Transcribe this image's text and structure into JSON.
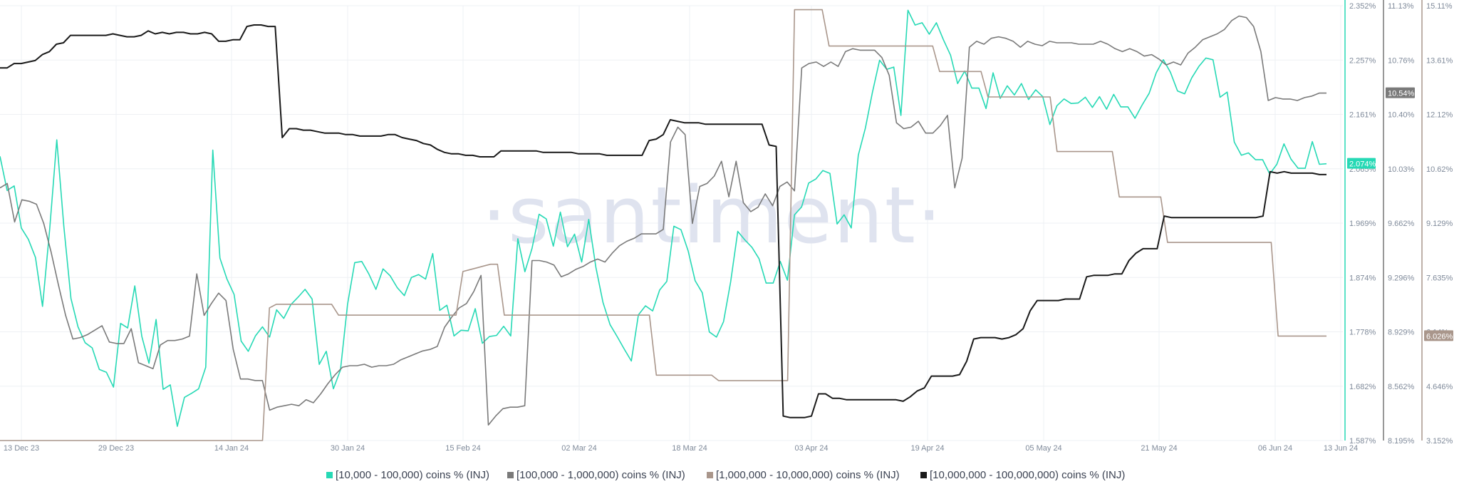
{
  "watermark": "·santiment·",
  "chart_data": {
    "type": "line",
    "x_labels": [
      "13 Dec 23",
      "29 Dec 23",
      "14 Jan 24",
      "30 Jan 24",
      "15 Feb 24",
      "02 Mar 24",
      "18 Mar 24",
      "03 Apr 24",
      "19 Apr 24",
      "05 May 24",
      "21 May 24",
      "06 Jun 24",
      "13 Jun 24"
    ],
    "axes": [
      {
        "id": "a1",
        "color": "#26d9b5",
        "ticks": [
          "2.352%",
          "2.257%",
          "2.161%",
          "2.065%",
          "1.969%",
          "1.874%",
          "1.778%",
          "1.682%",
          "1.587%"
        ],
        "min": 1.587,
        "max": 2.352
      },
      {
        "id": "a2",
        "color": "#777777",
        "ticks": [
          "11.13%",
          "10.76%",
          "10.40%",
          "10.03%",
          "9.662%",
          "9.296%",
          "8.929%",
          "8.562%",
          "8.195%"
        ],
        "min": 8.195,
        "max": 11.13
      },
      {
        "id": "a3",
        "color": "#a9968b",
        "ticks": [
          "15.11%",
          "13.61%",
          "12.12%",
          "10.62%",
          "9.129%",
          "7.635%",
          "6.14%",
          "4.646%",
          "3.152%"
        ],
        "min": 3.152,
        "max": 15.11
      }
    ],
    "series": [
      {
        "name": "[10,000 - 100,000) coins % (INJ)",
        "color": "#26d9b5",
        "axis": "a1",
        "badge": "2.074%",
        "values": [
          2.087,
          2.027,
          2.035,
          1.961,
          1.941,
          1.909,
          1.823,
          1.958,
          2.116,
          1.964,
          1.837,
          1.787,
          1.759,
          1.75,
          1.712,
          1.707,
          1.681,
          1.793,
          1.785,
          1.859,
          1.77,
          1.723,
          1.8,
          1.677,
          1.685,
          1.612,
          1.663,
          1.67,
          1.678,
          1.716,
          2.098,
          1.908,
          1.871,
          1.844,
          1.762,
          1.744,
          1.771,
          1.787,
          1.769,
          1.817,
          1.802,
          1.826,
          1.839,
          1.853,
          1.836,
          1.721,
          1.744,
          1.678,
          1.711,
          1.827,
          1.9,
          1.902,
          1.88,
          1.853,
          1.889,
          1.877,
          1.856,
          1.842,
          1.874,
          1.879,
          1.871,
          1.916,
          1.816,
          1.825,
          1.771,
          1.781,
          1.78,
          1.819,
          1.758,
          1.77,
          1.772,
          1.788,
          1.771,
          1.942,
          1.884,
          1.925,
          1.985,
          1.977,
          1.929,
          1.989,
          1.928,
          1.95,
          1.901,
          1.976,
          1.892,
          1.83,
          1.791,
          1.77,
          1.748,
          1.727,
          1.808,
          1.824,
          1.815,
          1.852,
          1.867,
          1.964,
          1.958,
          1.921,
          1.868,
          1.847,
          1.778,
          1.769,
          1.796,
          1.866,
          1.955,
          1.94,
          1.927,
          1.907,
          1.864,
          1.864,
          1.902,
          1.869,
          1.984,
          1.998,
          2.04,
          2.047,
          2.062,
          2.057,
          1.968,
          1.984,
          1.961,
          2.089,
          2.137,
          2.2,
          2.256,
          2.24,
          2.244,
          2.159,
          2.344,
          2.318,
          2.322,
          2.302,
          2.322,
          2.292,
          2.265,
          2.215,
          2.237,
          2.207,
          2.207,
          2.171,
          2.234,
          2.189,
          2.211,
          2.195,
          2.215,
          2.187,
          2.204,
          2.192,
          2.143,
          2.176,
          2.188,
          2.18,
          2.181,
          2.191,
          2.173,
          2.192,
          2.17,
          2.196,
          2.174,
          2.174,
          2.154,
          2.177,
          2.198,
          2.234,
          2.257,
          2.235,
          2.202,
          2.197,
          2.225,
          2.245,
          2.26,
          2.257,
          2.191,
          2.2,
          2.112,
          2.089,
          2.093,
          2.081,
          2.081,
          2.056,
          2.073,
          2.109,
          2.082,
          2.066,
          2.066,
          2.113,
          2.073,
          2.074
        ],
        "markers": {
          "gap": 0.5
        }
      },
      {
        "name": "[100,000  - 1,000,000) coins % (INJ)",
        "color": "#7a7a7a",
        "axis": "a2",
        "values": [
          9.9,
          9.93,
          9.67,
          9.82,
          9.81,
          9.79,
          9.66,
          9.47,
          9.25,
          9.04,
          8.88,
          8.89,
          8.91,
          8.94,
          8.97,
          8.86,
          8.85,
          8.85,
          8.95,
          8.72,
          8.7,
          8.68,
          8.84,
          8.87,
          8.87,
          8.88,
          8.9,
          9.32,
          9.04,
          9.12,
          9.19,
          9.14,
          8.81,
          8.61,
          8.61,
          8.6,
          8.6,
          8.4,
          8.42,
          8.43,
          8.44,
          8.43,
          8.47,
          8.45,
          8.51,
          8.58,
          8.64,
          8.69,
          8.7,
          8.7,
          8.71,
          8.69,
          8.7,
          8.7,
          8.71,
          8.74,
          8.76,
          8.78,
          8.8,
          8.81,
          8.83,
          8.96,
          9.03,
          9.09,
          9.12,
          9.2,
          9.31,
          8.3,
          8.36,
          8.41,
          8.42,
          8.42,
          8.43,
          9.41,
          9.41,
          9.4,
          9.38,
          9.3,
          9.32,
          9.35,
          9.37,
          9.4,
          9.42,
          9.4,
          9.46,
          9.51,
          9.54,
          9.56,
          9.59,
          9.59,
          9.59,
          9.62,
          10.21,
          10.31,
          10.26,
          9.66,
          9.91,
          9.93,
          9.98,
          10.08,
          9.84,
          10.08,
          9.8,
          9.74,
          9.77,
          9.86,
          9.78,
          9.91,
          9.94,
          9.88,
          10.71,
          10.74,
          10.75,
          10.72,
          10.75,
          10.72,
          10.82,
          10.84,
          10.83,
          10.83,
          10.83,
          10.78,
          10.66,
          10.34,
          10.3,
          10.31,
          10.35,
          10.27,
          10.27,
          10.32,
          10.39,
          9.9,
          10.1,
          10.85,
          10.89,
          10.87,
          10.91,
          10.92,
          10.91,
          10.89,
          10.85,
          10.89,
          10.87,
          10.86,
          10.89,
          10.88,
          10.88,
          10.88,
          10.87,
          10.87,
          10.87,
          10.89,
          10.87,
          10.84,
          10.82,
          10.84,
          10.82,
          10.79,
          10.8,
          10.77,
          10.73,
          10.75,
          10.73,
          10.81,
          10.85,
          10.9,
          10.92,
          10.94,
          10.97,
          11.03,
          11.06,
          11.05,
          10.99,
          10.82,
          10.49,
          10.51,
          10.5,
          10.5,
          10.49,
          10.51,
          10.52,
          10.54,
          10.54
        ],
        "badge": "10.54%"
      },
      {
        "name": "[1,000,000 - 10,000,000) coins % (INJ)",
        "color": "#a9968b",
        "axis": "a3",
        "badge": "6.026%",
        "values": [
          3.152,
          3.152,
          3.152,
          3.152,
          3.152,
          3.152,
          3.152,
          3.152,
          3.152,
          3.152,
          3.152,
          3.152,
          3.152,
          3.152,
          3.152,
          3.152,
          3.152,
          3.152,
          3.152,
          3.152,
          3.152,
          3.152,
          3.152,
          3.152,
          3.152,
          3.152,
          3.152,
          3.152,
          3.152,
          3.152,
          3.152,
          3.152,
          3.152,
          3.152,
          3.152,
          3.152,
          3.152,
          3.152,
          3.152,
          6.8,
          6.9,
          6.9,
          6.9,
          6.9,
          6.9,
          6.9,
          6.9,
          6.9,
          6.9,
          6.6,
          6.6,
          6.6,
          6.6,
          6.6,
          6.6,
          6.6,
          6.6,
          6.6,
          6.6,
          6.6,
          6.6,
          6.6,
          6.6,
          6.6,
          6.6,
          6.6,
          6.6,
          7.8,
          7.85,
          7.9,
          7.95,
          8.0,
          8.0,
          6.6,
          6.6,
          6.6,
          6.6,
          6.6,
          6.6,
          6.6,
          6.6,
          6.6,
          6.6,
          6.6,
          6.6,
          6.6,
          6.6,
          6.6,
          6.6,
          6.6,
          6.6,
          6.6,
          6.6,
          6.6,
          6.6,
          4.95,
          4.95,
          4.95,
          4.95,
          4.95,
          4.95,
          4.95,
          4.95,
          4.95,
          4.8,
          4.8,
          4.8,
          4.8,
          4.8,
          4.8,
          4.8,
          4.8,
          4.8,
          4.8,
          4.8,
          15.0,
          15.0,
          15.0,
          15.0,
          15.0,
          14.0,
          14.0,
          14.0,
          14.0,
          14.0,
          14.0,
          14.0,
          14.0,
          14.0,
          14.0,
          14.0,
          14.0,
          14.0,
          14.0,
          14.0,
          14.0,
          13.3,
          13.3,
          13.3,
          13.3,
          13.3,
          13.3,
          13.3,
          12.6,
          12.6,
          12.6,
          12.6,
          12.6,
          12.6,
          12.6,
          12.6,
          12.6,
          12.6,
          11.1,
          11.1,
          11.1,
          11.1,
          11.1,
          11.1,
          11.1,
          11.1,
          11.1,
          9.85,
          9.85,
          9.85,
          9.85,
          9.85,
          9.85,
          9.85,
          8.6,
          8.6,
          8.6,
          8.6,
          8.6,
          8.6,
          8.6,
          8.6,
          8.6,
          8.6,
          8.6,
          8.6,
          8.6,
          8.6,
          8.6,
          8.6,
          6.026,
          6.026,
          6.026,
          6.026,
          6.026,
          6.026,
          6.026,
          6.026
        ]
      },
      {
        "name": "[10,000,000 - 100,000,000) coins % (INJ)",
        "color": "#1a1a1a",
        "axis": "a2",
        "values": [
          10.71,
          10.71,
          10.74,
          10.74,
          10.75,
          10.76,
          10.8,
          10.82,
          10.87,
          10.88,
          10.93,
          10.93,
          10.93,
          10.93,
          10.93,
          10.93,
          10.94,
          10.93,
          10.92,
          10.92,
          10.93,
          10.96,
          10.94,
          10.95,
          10.94,
          10.95,
          10.95,
          10.94,
          10.94,
          10.95,
          10.94,
          10.89,
          10.89,
          10.9,
          10.9,
          10.99,
          11.0,
          11.0,
          10.99,
          10.99,
          10.24,
          10.3,
          10.3,
          10.29,
          10.29,
          10.28,
          10.27,
          10.27,
          10.27,
          10.26,
          10.26,
          10.25,
          10.25,
          10.25,
          10.25,
          10.26,
          10.26,
          10.24,
          10.23,
          10.22,
          10.2,
          10.19,
          10.16,
          10.14,
          10.13,
          10.13,
          10.12,
          10.12,
          10.11,
          10.11,
          10.11,
          10.15,
          10.15,
          10.15,
          10.15,
          10.15,
          10.15,
          10.14,
          10.14,
          10.14,
          10.14,
          10.14,
          10.13,
          10.13,
          10.13,
          10.13,
          10.12,
          10.12,
          10.12,
          10.12,
          10.12,
          10.12,
          10.22,
          10.23,
          10.26,
          10.36,
          10.35,
          10.34,
          10.34,
          10.34,
          10.33,
          10.33,
          10.33,
          10.33,
          10.33,
          10.33,
          10.33,
          10.33,
          10.33,
          10.19,
          10.18,
          8.36,
          8.35,
          8.35,
          8.35,
          8.36,
          8.51,
          8.51,
          8.48,
          8.48,
          8.47,
          8.47,
          8.47,
          8.47,
          8.47,
          8.47,
          8.47,
          8.47,
          8.46,
          8.49,
          8.53,
          8.55,
          8.63,
          8.63,
          8.63,
          8.63,
          8.64,
          8.73,
          8.88,
          8.89,
          8.89,
          8.89,
          8.88,
          8.89,
          8.91,
          8.95,
          9.07,
          9.14,
          9.14,
          9.14,
          9.14,
          9.15,
          9.15,
          9.15,
          9.3,
          9.31,
          9.31,
          9.31,
          9.32,
          9.32,
          9.41,
          9.46,
          9.49,
          9.49,
          9.49,
          9.71,
          9.7,
          9.7,
          9.7,
          9.7,
          9.7,
          9.7,
          9.7,
          9.7,
          9.7,
          9.7,
          9.7,
          9.7,
          9.7,
          9.71,
          10.01,
          10.0,
          10.01,
          10.0,
          10.0,
          10.0,
          10.0,
          9.99,
          9.99
        ]
      }
    ],
    "legend_placement": "bottom-center",
    "grid": true
  }
}
